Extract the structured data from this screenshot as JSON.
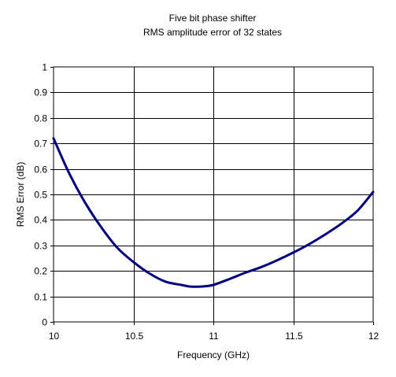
{
  "chart_data": {
    "type": "line",
    "title": "Five bit phase shifter",
    "subtitle": "RMS amplitude error of 32 states",
    "xlabel": "Frequency (GHz)",
    "ylabel": "RMS Error (dB)",
    "xlim": [
      10,
      12
    ],
    "ylim": [
      0,
      1
    ],
    "x_ticks": [
      "10",
      "10.5",
      "11",
      "11.5",
      "12"
    ],
    "y_ticks": [
      "0",
      "0.1",
      "0.2",
      "0.3",
      "0.4",
      "0.5",
      "0.6",
      "0.7",
      "0.8",
      "0.9",
      "1"
    ],
    "grid": true,
    "legend": "none",
    "series": [
      {
        "color": "#000080",
        "x": [
          10.0,
          10.1,
          10.2,
          10.3,
          10.4,
          10.5,
          10.6,
          10.7,
          10.8,
          10.85,
          10.9,
          10.95,
          11.0,
          11.1,
          11.2,
          11.3,
          11.4,
          11.5,
          11.6,
          11.7,
          11.8,
          11.9,
          12.0
        ],
        "y": [
          0.72,
          0.58,
          0.465,
          0.37,
          0.29,
          0.235,
          0.19,
          0.158,
          0.145,
          0.139,
          0.138,
          0.14,
          0.145,
          0.168,
          0.193,
          0.215,
          0.242,
          0.272,
          0.305,
          0.343,
          0.385,
          0.435,
          0.51
        ]
      }
    ]
  }
}
